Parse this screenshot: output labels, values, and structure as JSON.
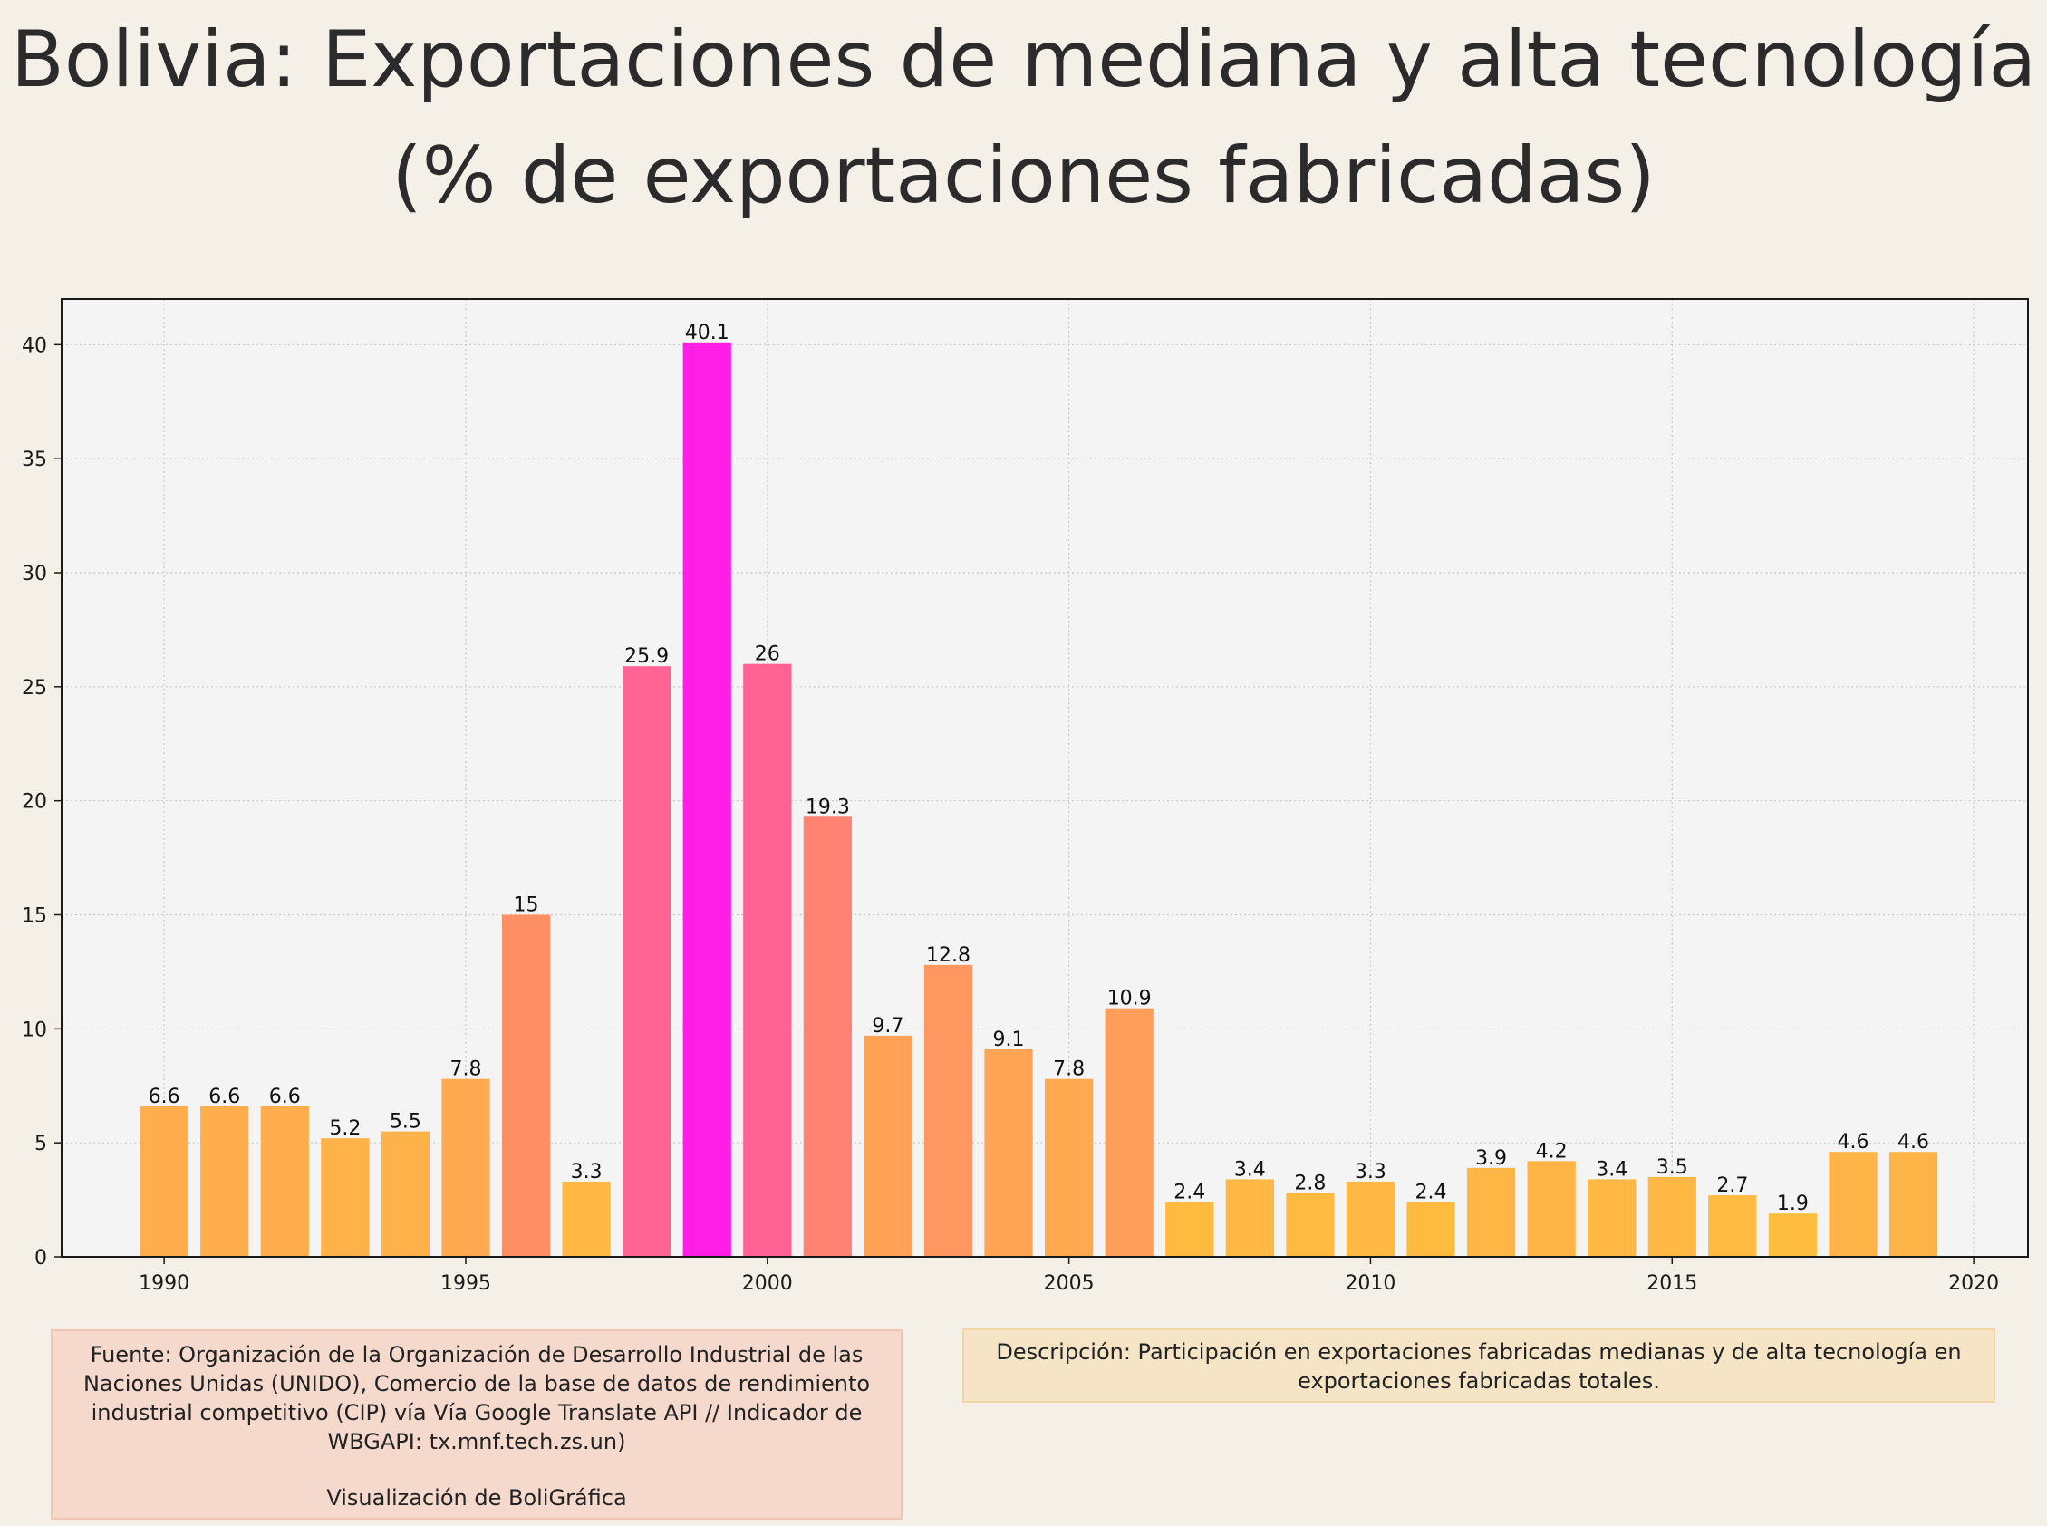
{
  "chart_data": {
    "type": "bar",
    "title": "Bolivia:  Exportaciones de mediana y alta tecnología (% de exportaciones fabricadas)",
    "x": [
      1990,
      1991,
      1992,
      1993,
      1994,
      1995,
      1996,
      1997,
      1998,
      1999,
      2000,
      2001,
      2002,
      2003,
      2004,
      2005,
      2006,
      2007,
      2008,
      2009,
      2010,
      2011,
      2012,
      2013,
      2014,
      2015,
      2016,
      2017,
      2018,
      2019
    ],
    "values": [
      6.6,
      6.6,
      6.6,
      5.2,
      5.5,
      7.8,
      15,
      3.3,
      25.9,
      40.1,
      26,
      19.3,
      9.7,
      12.8,
      9.1,
      7.8,
      10.9,
      2.4,
      3.4,
      2.8,
      3.3,
      2.4,
      3.9,
      4.2,
      3.4,
      3.5,
      2.7,
      1.9,
      4.6,
      4.6
    ],
    "data_labels": [
      "6.6",
      "6.6",
      "6.6",
      "5.2",
      "5.5",
      "7.8",
      "15",
      "3.3",
      "25.9",
      "40.1",
      "26",
      "19.3",
      "9.7",
      "12.8",
      "9.1",
      "7.8",
      "10.9",
      "2.4",
      "3.4",
      "2.8",
      "3.3",
      "2.4",
      "3.9",
      "4.2",
      "3.4",
      "3.5",
      "2.7",
      "1.9",
      "4.6",
      "4.6"
    ],
    "xlim": [
      1988.3,
      2020.9
    ],
    "ylim": [
      0,
      42
    ],
    "x_ticks": [
      1990,
      1995,
      2000,
      2005,
      2010,
      2015,
      2020
    ],
    "y_ticks": [
      0,
      5,
      10,
      15,
      20,
      25,
      30,
      35,
      40
    ],
    "xlabel": "",
    "ylabel": "",
    "grid": true,
    "colormap": "values mapped from yellow (low) to magenta (high)",
    "color_low": "#ffbd3f",
    "color_mid": "#ff7c78",
    "color_high": "#ff1ee6"
  },
  "footer": {
    "source": "Fuente: Organización de la Organización de Desarrollo Industrial de las Naciones Unidas (UNIDO), Comercio de la base de datos de rendimiento industrial competitivo (CIP) vía Vía Google Translate API // Indicador de WBGAPI: tx.mnf.tech.zs.un)",
    "credit": "Visualización de BoliGráfica",
    "description": "Descripción: Participación en exportaciones fabricadas medianas y de alta tecnología en exportaciones fabricadas totales."
  },
  "colors": {
    "background": "#f4efe7",
    "plot_background": "#f4f4f4",
    "source_box": "#f6d9cd",
    "description_box": "#f5e4c6"
  }
}
